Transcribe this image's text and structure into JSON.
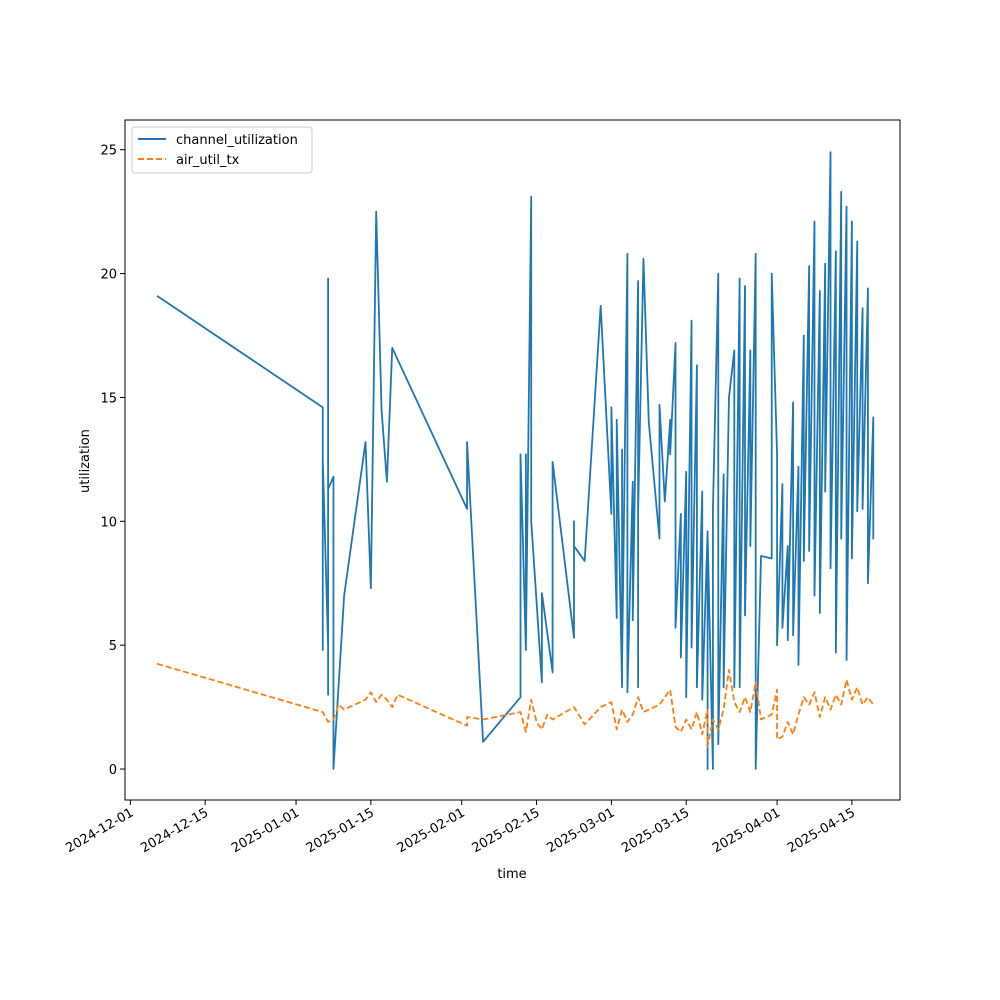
{
  "chart_data": {
    "type": "line",
    "xlabel": "time",
    "ylabel": "utilization",
    "xlim": [
      "2024-11-30",
      "2025-04-24"
    ],
    "ylim": [
      -1.25,
      26.2
    ],
    "x_ticks": [
      "2024-12-01",
      "2024-12-15",
      "2025-01-01",
      "2025-01-15",
      "2025-02-01",
      "2025-02-15",
      "2025-03-01",
      "2025-03-15",
      "2025-04-01",
      "2025-04-15"
    ],
    "y_ticks": [
      "0",
      "5",
      "10",
      "15",
      "20",
      "25"
    ],
    "grid": false,
    "legend_position": "upper-left",
    "series": [
      {
        "name": "channel_utilization",
        "color": "#1f77b4",
        "style": "solid",
        "points": [
          [
            "2024-12-06",
            19.1
          ],
          [
            "2025-01-06",
            14.6
          ],
          [
            "2025-01-06",
            4.8
          ],
          [
            "2025-01-06",
            12.5
          ],
          [
            "2025-01-07",
            5.0
          ],
          [
            "2025-01-07",
            19.8
          ],
          [
            "2025-01-07",
            3.0
          ],
          [
            "2025-01-07",
            11.3
          ],
          [
            "2025-01-08",
            11.8
          ],
          [
            "2025-01-08",
            0.0
          ],
          [
            "2025-01-10",
            7.0
          ],
          [
            "2025-01-14",
            13.2
          ],
          [
            "2025-01-15",
            7.3
          ],
          [
            "2025-01-16",
            22.5
          ],
          [
            "2025-01-17",
            14.5
          ],
          [
            "2025-01-18",
            11.6
          ],
          [
            "2025-01-19",
            17.0
          ],
          [
            "2025-02-02",
            10.5
          ],
          [
            "2025-02-02",
            13.2
          ],
          [
            "2025-02-05",
            1.1
          ],
          [
            "2025-02-12",
            2.9
          ],
          [
            "2025-02-12",
            9.1
          ],
          [
            "2025-02-12",
            4.3
          ],
          [
            "2025-02-12",
            12.7
          ],
          [
            "2025-02-13",
            4.8
          ],
          [
            "2025-02-13",
            12.7
          ],
          [
            "2025-02-13",
            4.8
          ],
          [
            "2025-02-14",
            23.1
          ],
          [
            "2025-02-14",
            10.0
          ],
          [
            "2025-02-16",
            3.5
          ],
          [
            "2025-02-16",
            7.1
          ],
          [
            "2025-02-18",
            3.9
          ],
          [
            "2025-02-18",
            12.4
          ],
          [
            "2025-02-22",
            5.3
          ],
          [
            "2025-02-22",
            10.0
          ],
          [
            "2025-02-22",
            9.0
          ],
          [
            "2025-02-24",
            8.4
          ],
          [
            "2025-02-27",
            18.7
          ],
          [
            "2025-03-01",
            10.3
          ],
          [
            "2025-03-01",
            14.6
          ],
          [
            "2025-03-02",
            6.1
          ],
          [
            "2025-03-02",
            14.1
          ],
          [
            "2025-03-03",
            3.3
          ],
          [
            "2025-03-03",
            12.9
          ],
          [
            "2025-03-03",
            4.3
          ],
          [
            "2025-03-04",
            20.8
          ],
          [
            "2025-03-04",
            3.1
          ],
          [
            "2025-03-05",
            11.6
          ],
          [
            "2025-03-05",
            6.0
          ],
          [
            "2025-03-06",
            19.7
          ],
          [
            "2025-03-06",
            3.3
          ],
          [
            "2025-03-06",
            10.4
          ],
          [
            "2025-03-07",
            20.6
          ],
          [
            "2025-03-08",
            14.0
          ],
          [
            "2025-03-10",
            9.3
          ],
          [
            "2025-03-10",
            14.7
          ],
          [
            "2025-03-11",
            10.8
          ],
          [
            "2025-03-12",
            14.1
          ],
          [
            "2025-03-12",
            12.7
          ],
          [
            "2025-03-13",
            17.2
          ],
          [
            "2025-03-13",
            5.7
          ],
          [
            "2025-03-14",
            10.3
          ],
          [
            "2025-03-14",
            4.5
          ],
          [
            "2025-03-15",
            12.0
          ],
          [
            "2025-03-15",
            2.9
          ],
          [
            "2025-03-16",
            18.1
          ],
          [
            "2025-03-16",
            4.9
          ],
          [
            "2025-03-17",
            16.3
          ],
          [
            "2025-03-17",
            3.3
          ],
          [
            "2025-03-18",
            11.2
          ],
          [
            "2025-03-18",
            2.8
          ],
          [
            "2025-03-19",
            9.6
          ],
          [
            "2025-03-19",
            0.0
          ],
          [
            "2025-03-19",
            9.5
          ],
          [
            "2025-03-20",
            0.0
          ],
          [
            "2025-03-20",
            10.5
          ],
          [
            "2025-03-21",
            20.0
          ],
          [
            "2025-03-21",
            1.0
          ],
          [
            "2025-03-22",
            11.9
          ],
          [
            "2025-03-22",
            3.3
          ],
          [
            "2025-03-23",
            15.0
          ],
          [
            "2025-03-24",
            16.9
          ],
          [
            "2025-03-24",
            3.3
          ],
          [
            "2025-03-25",
            19.8
          ],
          [
            "2025-03-25",
            3.3
          ],
          [
            "2025-03-26",
            19.5
          ],
          [
            "2025-03-26",
            6.2
          ],
          [
            "2025-03-27",
            16.9
          ],
          [
            "2025-03-27",
            9.0
          ],
          [
            "2025-03-28",
            20.8
          ],
          [
            "2025-03-28",
            0.0
          ],
          [
            "2025-03-29",
            8.6
          ],
          [
            "2025-03-31",
            8.5
          ],
          [
            "2025-03-31",
            20.0
          ],
          [
            "2025-04-01",
            12.7
          ],
          [
            "2025-04-01",
            5.0
          ],
          [
            "2025-04-02",
            11.5
          ],
          [
            "2025-04-02",
            5.7
          ],
          [
            "2025-04-03",
            9.0
          ],
          [
            "2025-04-03",
            5.2
          ],
          [
            "2025-04-04",
            14.8
          ],
          [
            "2025-04-04",
            5.4
          ],
          [
            "2025-04-05",
            12.2
          ],
          [
            "2025-04-05",
            4.2
          ],
          [
            "2025-04-06",
            17.5
          ],
          [
            "2025-04-06",
            8.4
          ],
          [
            "2025-04-07",
            20.3
          ],
          [
            "2025-04-07",
            8.8
          ],
          [
            "2025-04-08",
            22.1
          ],
          [
            "2025-04-08",
            7.0
          ],
          [
            "2025-04-09",
            19.3
          ],
          [
            "2025-04-09",
            6.3
          ],
          [
            "2025-04-10",
            20.4
          ],
          [
            "2025-04-10",
            11.2
          ],
          [
            "2025-04-11",
            24.9
          ],
          [
            "2025-04-11",
            8.1
          ],
          [
            "2025-04-12",
            20.9
          ],
          [
            "2025-04-12",
            4.7
          ],
          [
            "2025-04-13",
            23.3
          ],
          [
            "2025-04-13",
            9.3
          ],
          [
            "2025-04-14",
            22.7
          ],
          [
            "2025-04-14",
            4.4
          ],
          [
            "2025-04-15",
            22.1
          ],
          [
            "2025-04-15",
            8.5
          ],
          [
            "2025-04-16",
            21.3
          ],
          [
            "2025-04-16",
            10.4
          ],
          [
            "2025-04-17",
            18.6
          ],
          [
            "2025-04-17",
            10.5
          ],
          [
            "2025-04-18",
            19.4
          ],
          [
            "2025-04-18",
            7.5
          ],
          [
            "2025-04-19",
            14.2
          ],
          [
            "2025-04-19",
            9.3
          ],
          [
            "2025-04-19",
            12.4
          ]
        ]
      },
      {
        "name": "air_util_tx",
        "color": "#ff7f0e",
        "style": "dashed",
        "points": [
          [
            "2024-12-06",
            4.25
          ],
          [
            "2025-01-06",
            2.3
          ],
          [
            "2025-01-07",
            1.9
          ],
          [
            "2025-01-08",
            2.0
          ],
          [
            "2025-01-09",
            2.6
          ],
          [
            "2025-01-10",
            2.4
          ],
          [
            "2025-01-14",
            2.8
          ],
          [
            "2025-01-15",
            3.1
          ],
          [
            "2025-01-16",
            2.7
          ],
          [
            "2025-01-17",
            3.0
          ],
          [
            "2025-01-18",
            2.8
          ],
          [
            "2025-01-19",
            2.5
          ],
          [
            "2025-01-20",
            3.0
          ],
          [
            "2025-02-02",
            1.75
          ],
          [
            "2025-02-02",
            2.1
          ],
          [
            "2025-02-05",
            2.0
          ],
          [
            "2025-02-12",
            2.3
          ],
          [
            "2025-02-13",
            1.5
          ],
          [
            "2025-02-14",
            2.8
          ],
          [
            "2025-02-15",
            1.9
          ],
          [
            "2025-02-16",
            1.6
          ],
          [
            "2025-02-17",
            2.2
          ],
          [
            "2025-02-18",
            2.0
          ],
          [
            "2025-02-22",
            2.5
          ],
          [
            "2025-02-24",
            1.8
          ],
          [
            "2025-02-27",
            2.5
          ],
          [
            "2025-03-01",
            2.7
          ],
          [
            "2025-03-02",
            1.6
          ],
          [
            "2025-03-03",
            2.4
          ],
          [
            "2025-03-04",
            1.9
          ],
          [
            "2025-03-05",
            2.2
          ],
          [
            "2025-03-06",
            2.9
          ],
          [
            "2025-03-07",
            2.3
          ],
          [
            "2025-03-10",
            2.6
          ],
          [
            "2025-03-12",
            3.2
          ],
          [
            "2025-03-13",
            1.7
          ],
          [
            "2025-03-14",
            1.5
          ],
          [
            "2025-03-15",
            2.0
          ],
          [
            "2025-03-16",
            1.6
          ],
          [
            "2025-03-17",
            2.3
          ],
          [
            "2025-03-18",
            1.4
          ],
          [
            "2025-03-19",
            2.4
          ],
          [
            "2025-03-19",
            0.9
          ],
          [
            "2025-03-20",
            2.0
          ],
          [
            "2025-03-21",
            1.6
          ],
          [
            "2025-03-22",
            2.4
          ],
          [
            "2025-03-23",
            4.0
          ],
          [
            "2025-03-24",
            2.7
          ],
          [
            "2025-03-25",
            2.3
          ],
          [
            "2025-03-26",
            2.9
          ],
          [
            "2025-03-27",
            2.3
          ],
          [
            "2025-03-28",
            3.5
          ],
          [
            "2025-03-29",
            2.0
          ],
          [
            "2025-03-31",
            2.2
          ],
          [
            "2025-04-01",
            3.2
          ],
          [
            "2025-04-01",
            1.2
          ],
          [
            "2025-04-02",
            1.3
          ],
          [
            "2025-04-03",
            1.9
          ],
          [
            "2025-04-04",
            1.4
          ],
          [
            "2025-04-05",
            2.2
          ],
          [
            "2025-04-06",
            2.9
          ],
          [
            "2025-04-07",
            2.6
          ],
          [
            "2025-04-08",
            3.1
          ],
          [
            "2025-04-09",
            2.1
          ],
          [
            "2025-04-10",
            2.9
          ],
          [
            "2025-04-11",
            2.4
          ],
          [
            "2025-04-12",
            3.0
          ],
          [
            "2025-04-13",
            2.6
          ],
          [
            "2025-04-14",
            3.6
          ],
          [
            "2025-04-15",
            2.8
          ],
          [
            "2025-04-16",
            3.3
          ],
          [
            "2025-04-17",
            2.6
          ],
          [
            "2025-04-18",
            2.9
          ],
          [
            "2025-04-19",
            2.6
          ]
        ]
      }
    ]
  }
}
